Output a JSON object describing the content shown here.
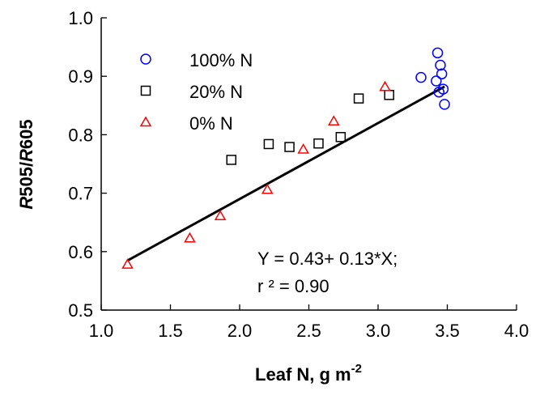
{
  "chart_data": {
    "type": "scatter",
    "title": "",
    "xlabel": "Leaf N, g m",
    "xlabel_sup": "-2",
    "ylabel_parts": [
      {
        "text": "R",
        "italic": true
      },
      {
        "text": "505/",
        "italic": false
      },
      {
        "text": "R",
        "italic": true
      },
      {
        "text": "605",
        "italic": false
      }
    ],
    "xlim": [
      1.0,
      4.0
    ],
    "ylim": [
      0.5,
      1.0
    ],
    "x_ticks": [
      1.0,
      1.5,
      2.0,
      2.5,
      3.0,
      3.5,
      4.0
    ],
    "x_tick_labels": [
      "1.0",
      "1.5",
      "2.0",
      "2.5",
      "3.0",
      "3.5",
      "4.0"
    ],
    "y_ticks": [
      0.5,
      0.6,
      0.7,
      0.8,
      0.9,
      1.0
    ],
    "y_tick_labels": [
      "0.5",
      "0.6",
      "0.7",
      "0.8",
      "0.9",
      "1.0"
    ],
    "grid": false,
    "legend_position": "top-left",
    "series": [
      {
        "name": "100% N",
        "marker": "circle",
        "color": "#0000ff",
        "points": [
          [
            3.31,
            0.898
          ],
          [
            3.42,
            0.892
          ],
          [
            3.43,
            0.94
          ],
          [
            3.44,
            0.873
          ],
          [
            3.45,
            0.919
          ],
          [
            3.46,
            0.904
          ],
          [
            3.47,
            0.878
          ],
          [
            3.48,
            0.852
          ]
        ]
      },
      {
        "name": "20% N",
        "marker": "square",
        "color": "#000000",
        "points": [
          [
            1.94,
            0.757
          ],
          [
            2.21,
            0.784
          ],
          [
            2.36,
            0.779
          ],
          [
            2.57,
            0.785
          ],
          [
            2.73,
            0.796
          ],
          [
            2.86,
            0.862
          ],
          [
            3.08,
            0.868
          ]
        ]
      },
      {
        "name": "0% N",
        "marker": "triangle",
        "color": "#ff0000",
        "points": [
          [
            1.19,
            0.578
          ],
          [
            1.64,
            0.623
          ],
          [
            1.86,
            0.661
          ],
          [
            2.2,
            0.706
          ],
          [
            2.46,
            0.775
          ],
          [
            2.68,
            0.823
          ],
          [
            3.05,
            0.882
          ]
        ]
      }
    ],
    "regression": {
      "intercept": 0.43,
      "slope": 0.13,
      "x_range": [
        1.19,
        3.48
      ],
      "color": "#000000"
    },
    "annotations": [
      "Y = 0.43+ 0.13*X;",
      "r ² = 0.90"
    ]
  }
}
